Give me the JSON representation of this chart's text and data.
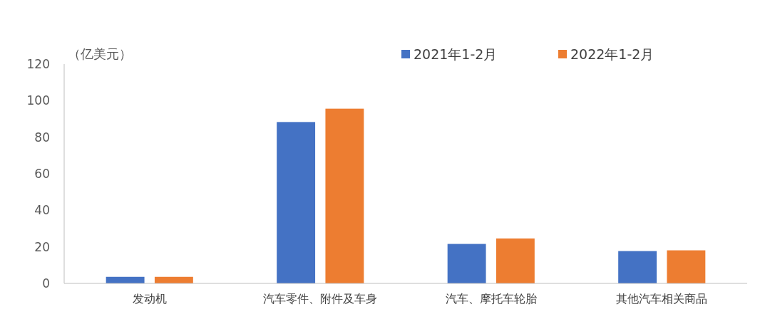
{
  "chart_data": {
    "type": "bar",
    "ylabel": "（亿美元）",
    "categories": [
      "发动机",
      "汽车零件、附件及车身",
      "汽车、摩托车轮胎",
      "其他汽车相关商品"
    ],
    "series": [
      {
        "name": "2021年1-2月",
        "color": "#4472c4",
        "values": [
          3.6,
          88.3,
          21.6,
          17.7
        ]
      },
      {
        "name": "2022年1-2月",
        "color": "#ed7d31",
        "values": [
          3.6,
          95.6,
          24.6,
          18.1
        ]
      }
    ],
    "ylim": [
      0,
      120
    ],
    "yticks": [
      0,
      20,
      40,
      60,
      80,
      100,
      120
    ],
    "grid": false,
    "legend": "top right"
  }
}
